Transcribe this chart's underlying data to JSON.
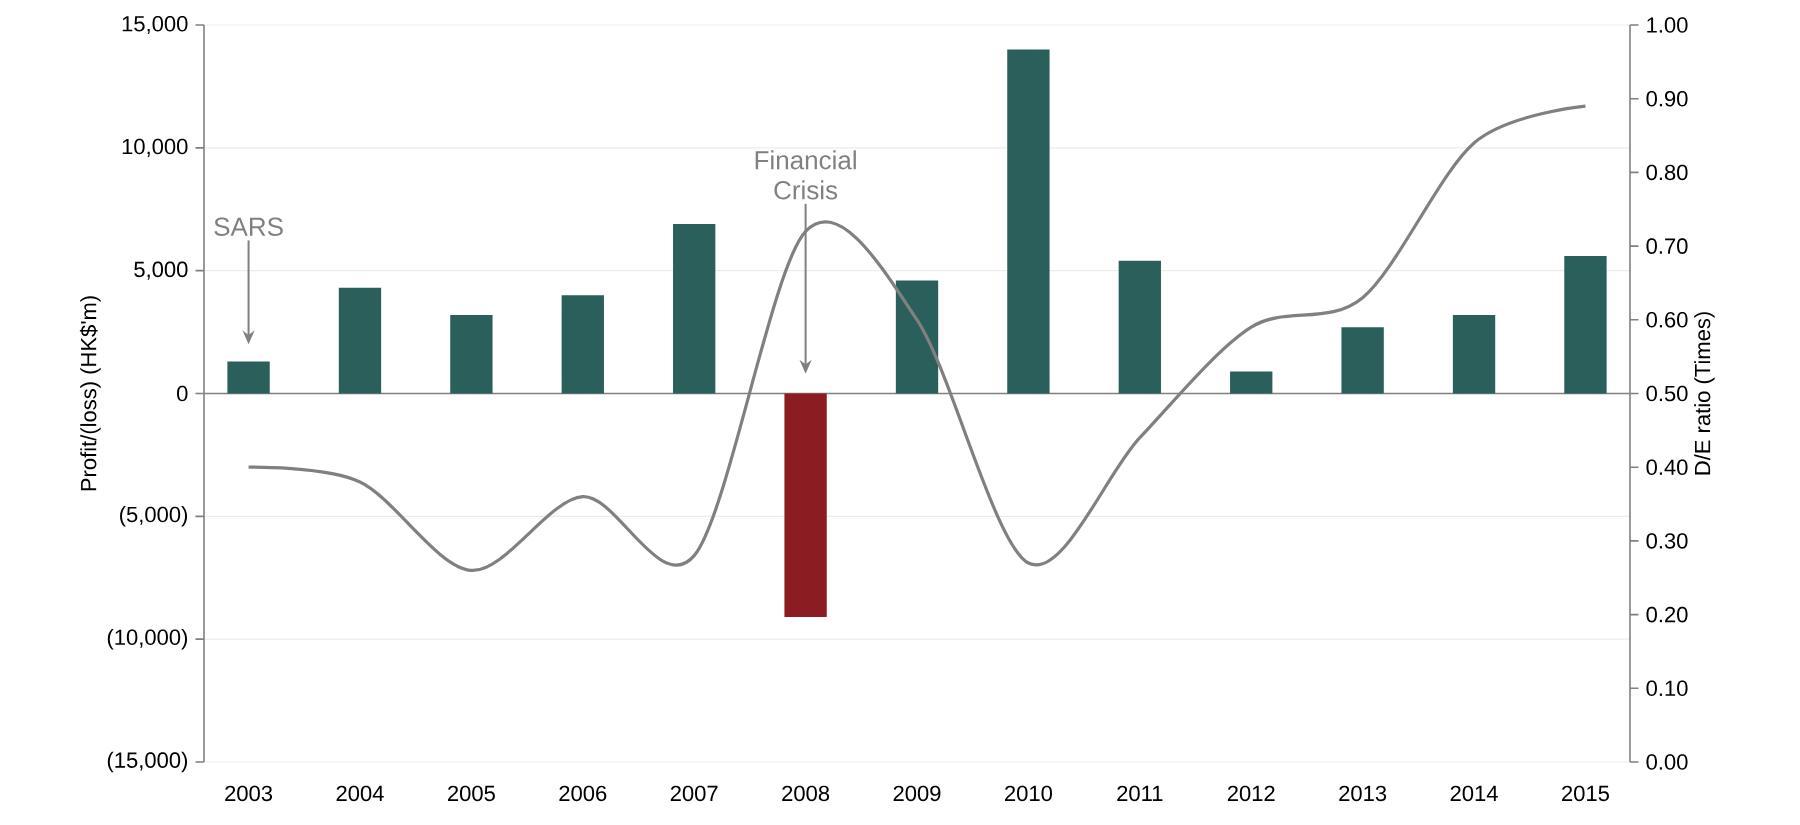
{
  "chart_data": {
    "type": "bar",
    "categories": [
      "2003",
      "2004",
      "2005",
      "2006",
      "2007",
      "2008",
      "2009",
      "2010",
      "2011",
      "2012",
      "2013",
      "2014",
      "2015"
    ],
    "ylabel": "Profit/(loss) (HK$'m)",
    "y2label": "D/E ratio  (Times)",
    "ylim": [
      -15000,
      15000
    ],
    "yticks": [
      {
        "value": -15000,
        "label": "(15,000)"
      },
      {
        "value": -10000,
        "label": "(10,000)"
      },
      {
        "value": -5000,
        "label": "(5,000)"
      },
      0,
      {
        "value": 5000,
        "label": "5,000"
      },
      {
        "value": 10000,
        "label": "10,000"
      },
      {
        "value": 15000,
        "label": "15,000"
      }
    ],
    "y2lim": [
      0,
      1
    ],
    "y2ticks": [
      {
        "value": 0,
        "label": "0.00"
      },
      {
        "value": 0.1,
        "label": "0.10"
      },
      {
        "value": 0.2,
        "label": "0.20"
      },
      {
        "value": 0.3,
        "label": "0.30"
      },
      {
        "value": 0.4,
        "label": "0.40"
      },
      {
        "value": 0.5,
        "label": "0.50"
      },
      {
        "value": 0.6,
        "label": "0.60"
      },
      {
        "value": 0.7,
        "label": "0.70"
      },
      {
        "value": 0.8,
        "label": "0.80"
      },
      {
        "value": 0.9,
        "label": "0.90"
      },
      {
        "value": 1,
        "label": "1.00"
      }
    ],
    "grid": "y",
    "series": [
      {
        "colors": [
          "#2a5f5c",
          "#2a5f5c",
          "#2a5f5c",
          "#2a5f5c",
          "#2a5f5c",
          "#8b1c22",
          "#2a5f5c",
          "#2a5f5c",
          "#2a5f5c",
          "#2a5f5c",
          "#2a5f5c",
          "#2a5f5c",
          "#2a5f5c"
        ],
        "values": [
          1300,
          4300,
          3200,
          4000,
          6900,
          -9100,
          4600,
          14000,
          5400,
          900,
          2700,
          3200,
          5600
        ]
      },
      {
        "type": "line",
        "axis": "y2",
        "color": "#808080",
        "values": [
          0.4,
          0.38,
          0.26,
          0.36,
          0.28,
          0.72,
          0.6,
          0.27,
          0.44,
          0.59,
          0.63,
          0.84,
          0.89
        ]
      }
    ],
    "annotations": [
      "SARS",
      "Financial Crisis"
    ]
  }
}
